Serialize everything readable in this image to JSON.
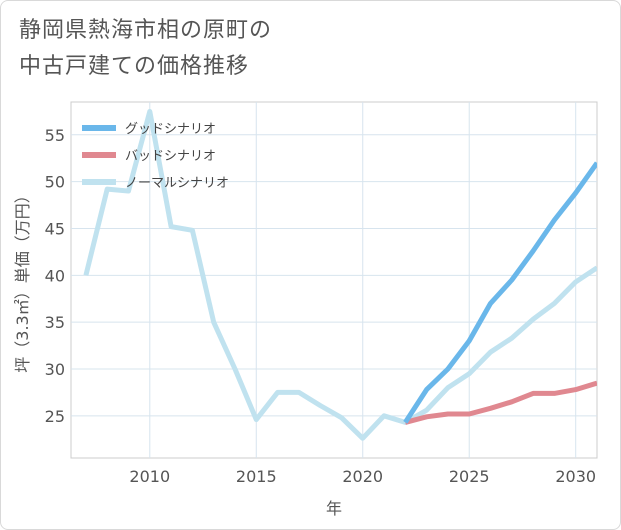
{
  "title_lines": [
    "静岡県熱海市相の原町の",
    "中古戸建ての価格推移"
  ],
  "chart_data": {
    "type": "line",
    "xlabel": "年",
    "ylabel": "坪（3.3㎡）単価（万円）",
    "xlim": [
      2006.3,
      2031
    ],
    "ylim": [
      20.5,
      58.5
    ],
    "x_ticks": [
      2010,
      2015,
      2020,
      2025,
      2030
    ],
    "y_ticks": [
      25,
      30,
      35,
      40,
      45,
      50,
      55
    ],
    "grid": true,
    "legend_position": "top-left",
    "series": [
      {
        "name": "グッドシナリオ",
        "color": "#6ab7ea",
        "x": [
          2022,
          2023,
          2024,
          2025,
          2026,
          2027,
          2028,
          2029,
          2030,
          2031
        ],
        "values": [
          24.3,
          27.8,
          30.0,
          33.0,
          37.0,
          39.5,
          42.6,
          45.9,
          48.8,
          52.0
        ]
      },
      {
        "name": "バッドシナリオ",
        "color": "#e08890",
        "x": [
          2022,
          2023,
          2024,
          2025,
          2026,
          2027,
          2028,
          2029,
          2030,
          2031
        ],
        "values": [
          24.3,
          24.9,
          25.2,
          25.2,
          25.8,
          26.5,
          27.4,
          27.4,
          27.8,
          28.5
        ]
      },
      {
        "name": "ノーマルシナリオ",
        "color": "#c0e2ef",
        "x": [
          2007,
          2008,
          2009,
          2010,
          2011,
          2012,
          2013,
          2014,
          2015,
          2016,
          2017,
          2018,
          2019,
          2020,
          2021,
          2022,
          2023,
          2024,
          2025,
          2026,
          2027,
          2028,
          2029,
          2030,
          2031
        ],
        "values": [
          40.0,
          49.2,
          49.0,
          57.5,
          45.2,
          44.8,
          35.0,
          30.0,
          24.6,
          27.5,
          27.5,
          26.1,
          24.8,
          22.6,
          25.0,
          24.3,
          25.6,
          28.0,
          29.5,
          31.8,
          33.3,
          35.3,
          37.0,
          39.3,
          40.8
        ]
      }
    ]
  }
}
